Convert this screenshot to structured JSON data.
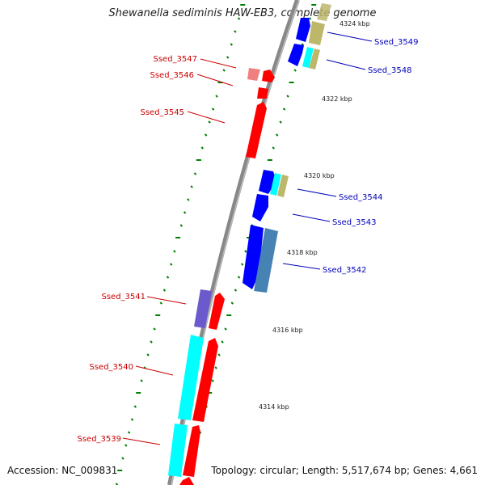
{
  "title": "Shewanella sediminis HAW-EB3, complete genome",
  "footer": {
    "accession": "Accession: NC_009831",
    "summary": "Topology: circular; Length: 5,517,674 bp; Genes: 4,661"
  },
  "colors": {
    "backbone": "#888888",
    "reverse_label": "#cc0000",
    "forward_label": "#0000bb",
    "tick": "#008000",
    "red": "#ff0000",
    "blue": "#0000ff",
    "cyan": "#00ffff",
    "khaki": "#bdb76b",
    "steel": "#4682b4",
    "purple": "#6a5acd",
    "pink": "#f08080"
  },
  "kbp_labels": [
    "4324 kbp",
    "4322 kbp",
    "4320 kbp",
    "4318 kbp",
    "4316 kbp",
    "4314 kbp"
  ],
  "loci": {
    "left": [
      "Ssed_3547",
      "Ssed_3546",
      "Ssed_3545",
      "Ssed_3541",
      "Ssed_3540",
      "Ssed_3539"
    ],
    "right": [
      "Ssed_3549",
      "Ssed_3548",
      "Ssed_3544",
      "Ssed_3543",
      "Ssed_3542"
    ]
  }
}
